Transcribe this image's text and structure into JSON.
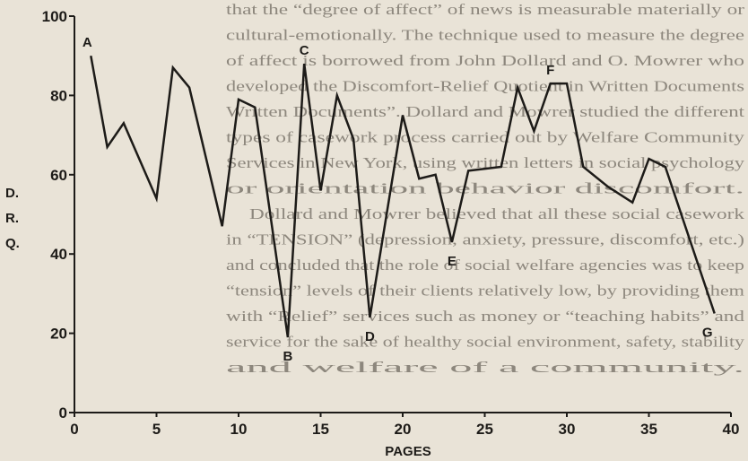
{
  "page_text": {
    "lines": [
      "that the “degree of affect” of news is measurable materially or",
      "cultural-emotionally. The technique used to measure the degree",
      "of affect is borrowed from John Dollard and O. Mowrer who",
      "developed the Discomfort-Relief Quotient in Written Documents",
      "Written Documents”. Dollard and Mowrer studied the different",
      "types of casework process carried out by Welfare Community",
      "Services in New York, using written letters in social psychology",
      "or orientation behavior discomfort.",
      "Dollard and Mowrer believed that all these social casework",
      "in “TENSION” (depression, anxiety, pressure, discomfort, etc.)",
      "and concluded that the role of social welfare agencies was to keep",
      "“tension” levels of their clients relatively low, by providing them",
      "with “Relief” services such as money or “teaching habits” and",
      "service for the sake of healthy social environment, safety, stability",
      "and welfare of a community."
    ]
  },
  "chart_data": {
    "type": "line",
    "xlabel": "PAGES",
    "ylabel": [
      "D.",
      "R.",
      "Q."
    ],
    "x": [
      1,
      2,
      3,
      5,
      6,
      7,
      9,
      10,
      11,
      13,
      14,
      15,
      16,
      17,
      18,
      20,
      21,
      22,
      23,
      24,
      26,
      27,
      28,
      29,
      30,
      31,
      32.5,
      34,
      35,
      36,
      39
    ],
    "values": [
      90,
      67,
      73,
      54,
      87,
      82,
      47,
      79,
      77,
      19,
      88,
      56,
      80,
      69,
      24,
      75,
      59,
      60,
      43,
      61,
      62,
      82,
      71,
      83,
      83,
      62,
      57,
      53,
      64,
      62,
      25
    ],
    "point_labels": [
      "A",
      null,
      null,
      null,
      null,
      null,
      null,
      null,
      null,
      "B",
      "C",
      null,
      null,
      null,
      "D",
      null,
      null,
      null,
      "E",
      null,
      null,
      null,
      null,
      "F",
      null,
      null,
      null,
      null,
      null,
      null,
      "G"
    ],
    "color": "#1d1b18",
    "xlim": [
      0,
      40
    ],
    "xticks": [
      0,
      5,
      10,
      15,
      20,
      25,
      30,
      35,
      40
    ],
    "ylim": [
      0,
      100
    ],
    "yticks": [
      0,
      20,
      40,
      60,
      80,
      100
    ],
    "grid": false
  }
}
